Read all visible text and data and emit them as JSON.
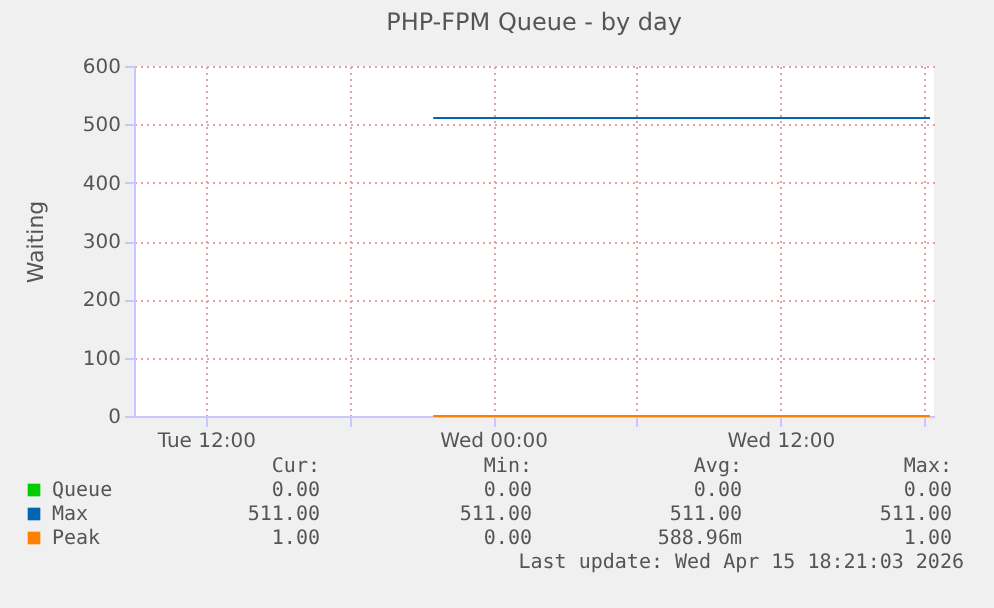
{
  "chart_data": {
    "type": "line",
    "title": "PHP-FPM Queue - by day",
    "ylabel": "Waiting",
    "x": [
      "2026-04-14T21:30",
      "2026-04-15T18:15"
    ],
    "series": [
      {
        "name": "Queue",
        "color": "#00cc00",
        "values": [
          null,
          null
        ]
      },
      {
        "name": "Max",
        "color": "#0066b3",
        "values": [
          511,
          511
        ]
      },
      {
        "name": "Peak",
        "color": "#ff8000",
        "values": [
          0,
          0
        ]
      }
    ],
    "xlim": [
      "2026-04-14T09:00",
      "2026-04-15T18:25"
    ],
    "xticks": [
      {
        "value": "2026-04-14T12:00",
        "label": "Tue 12:00"
      },
      {
        "value": "2026-04-14T18:00",
        "label": null
      },
      {
        "value": "2026-04-15T00:00",
        "label": "Wed 00:00"
      },
      {
        "value": "2026-04-15T06:00",
        "label": null
      },
      {
        "value": "2026-04-15T12:00",
        "label": "Wed 12:00"
      },
      {
        "value": "2026-04-15T18:00",
        "label": null
      }
    ],
    "ylim": [
      0,
      600
    ],
    "yticks": [
      0,
      100,
      200,
      300,
      400,
      500,
      600
    ],
    "grid": true,
    "legend": "bottom",
    "marker": "none",
    "line_style": "solid",
    "annotations": [
      "Cur:",
      "Min:",
      "Avg:",
      "Max:",
      "0.00",
      "0.00",
      "0.00",
      "0.00",
      "511.00",
      "511.00",
      "511.00",
      "511.00",
      "1.00",
      "0.00",
      "588.96m",
      "1.00",
      "Last update: Wed Apr 15 18:21:03 2026"
    ]
  }
}
